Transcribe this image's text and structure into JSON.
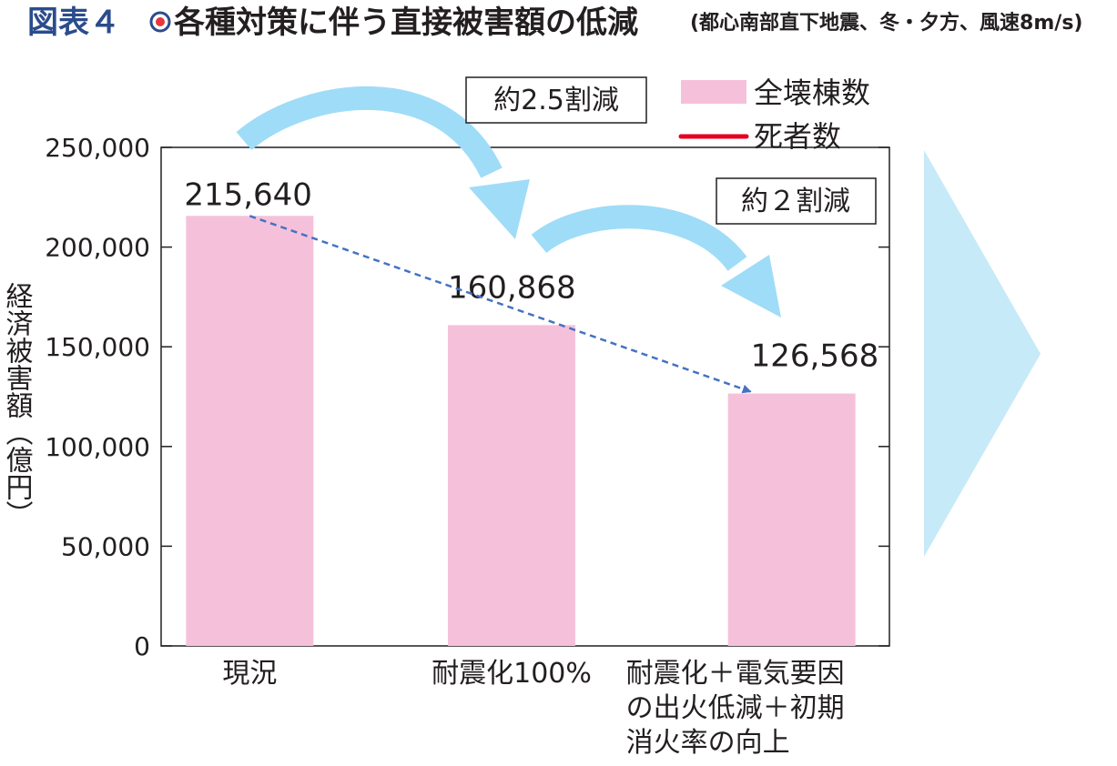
{
  "header": {
    "figure_number": "図表４",
    "title": "各種対策に伴う直接被害額の低減",
    "condition": "(都心南部直下地震、冬・夕方、風速8m/s)"
  },
  "colors": {
    "bar": "#f5c1da",
    "death_line": "#e60020",
    "trend_arrow": "#4472c4",
    "swoosh": "#9fdcf7",
    "right_arrow": "#c7eaf9",
    "figno_blue": "#2b4c8c",
    "figno_red": "#e5393b"
  },
  "annotations": {
    "reduction_1": "約2.5割減",
    "reduction_2": "約２割減"
  },
  "chart_data": {
    "type": "bar",
    "title": "各種対策に伴う直接被害額の低減",
    "ylabel": "経済被害額（億円）",
    "ylim": [
      0,
      250000
    ],
    "yticks": [
      0,
      50000,
      100000,
      150000,
      200000,
      250000
    ],
    "ytick_labels": [
      "0",
      "50,000",
      "100,000",
      "150,000",
      "200,000",
      "250,000"
    ],
    "categories": [
      [
        "現況"
      ],
      [
        "耐震化100%"
      ],
      [
        "耐震化＋電気要因",
        "の出火低減＋初期",
        "消火率の向上"
      ]
    ],
    "series": [
      {
        "name": "全壊棟数",
        "values": [
          215640,
          160868,
          126568
        ]
      }
    ],
    "value_labels": [
      "215,640",
      "160,868",
      "126,568"
    ],
    "legend": [
      "全壊棟数",
      "死者数"
    ],
    "legend_position": "top-right",
    "grid": false
  }
}
